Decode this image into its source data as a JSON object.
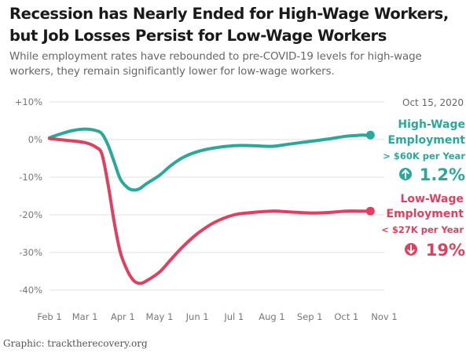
{
  "header": {
    "title_line1": "Recession has Nearly Ended for High-Wage Workers,",
    "title_line2": "but Job Losses Persist for Low-Wage Workers",
    "subtitle_line1": "While employment rates have rebounded to pre-COVID-19 levels for high-wage",
    "subtitle_line2": "workers, they remain significantly lower for low-wage workers."
  },
  "date_label": "Oct 15, 2020",
  "credit": "Graphic: tracktherecovery.org",
  "colors": {
    "high": "#2aa89a",
    "low": "#e0405f",
    "grid": "#e0e0e0",
    "axis_text": "#777777"
  },
  "annotations": {
    "high": {
      "line1": "High-Wage",
      "line2": "Employment",
      "line3": "> $60K per Year",
      "change": "1.2%",
      "icon": "arrow-up-circle-icon"
    },
    "low": {
      "line1": "Low-Wage",
      "line2": "Employment",
      "line3": "< $27K per Year",
      "change": "19%",
      "icon": "arrow-down-circle-icon"
    }
  },
  "chart_data": {
    "type": "line",
    "x_tick_labels": [
      "Feb 1",
      "Mar 1",
      "Apr 1",
      "May 1",
      "Jun 1",
      "Jul 1",
      "Aug 1",
      "Sep 1",
      "Oct 1",
      "Nov 1"
    ],
    "y_ticks": [
      10,
      0,
      -10,
      -20,
      -30,
      -40
    ],
    "y_tick_labels": [
      "+10%",
      "0%",
      "-10%",
      "-20%",
      "-30%",
      "-40%"
    ],
    "ylim": [
      -42,
      10
    ],
    "xlim": [
      "2020-02-01",
      "2020-11-01"
    ],
    "grid": "horizontal",
    "series": [
      {
        "name": "High-Wage Employment",
        "color": "#2aa89a",
        "points": [
          [
            "2020-02-01",
            0.5
          ],
          [
            "2020-02-10",
            1.5
          ],
          [
            "2020-02-20",
            2.4
          ],
          [
            "2020-03-01",
            2.8
          ],
          [
            "2020-03-10",
            2.4
          ],
          [
            "2020-03-15",
            1.5
          ],
          [
            "2020-03-20",
            -1.5
          ],
          [
            "2020-03-25",
            -6
          ],
          [
            "2020-03-30",
            -10.5
          ],
          [
            "2020-04-05",
            -12.8
          ],
          [
            "2020-04-10",
            -13.4
          ],
          [
            "2020-04-15",
            -13.0
          ],
          [
            "2020-04-20",
            -11.8
          ],
          [
            "2020-05-01",
            -9.5
          ],
          [
            "2020-05-10",
            -7.0
          ],
          [
            "2020-05-20",
            -4.8
          ],
          [
            "2020-06-01",
            -3.2
          ],
          [
            "2020-06-15",
            -2.2
          ],
          [
            "2020-07-01",
            -1.6
          ],
          [
            "2020-07-15",
            -1.6
          ],
          [
            "2020-08-01",
            -1.8
          ],
          [
            "2020-08-15",
            -1.2
          ],
          [
            "2020-09-01",
            -0.5
          ],
          [
            "2020-09-15",
            0.1
          ],
          [
            "2020-10-01",
            0.9
          ],
          [
            "2020-10-10",
            1.1
          ],
          [
            "2020-10-15",
            1.2
          ],
          [
            "2020-10-20",
            1.0
          ]
        ],
        "end_value": 1.2
      },
      {
        "name": "Low-Wage Employment",
        "color": "#e0405f",
        "points": [
          [
            "2020-02-01",
            0.3
          ],
          [
            "2020-02-15",
            -0.2
          ],
          [
            "2020-03-01",
            -0.8
          ],
          [
            "2020-03-10",
            -2.0
          ],
          [
            "2020-03-15",
            -4.0
          ],
          [
            "2020-03-20",
            -12.0
          ],
          [
            "2020-03-25",
            -22.0
          ],
          [
            "2020-03-30",
            -30.0
          ],
          [
            "2020-04-05",
            -35.0
          ],
          [
            "2020-04-10",
            -37.5
          ],
          [
            "2020-04-15",
            -38.2
          ],
          [
            "2020-04-20",
            -37.6
          ],
          [
            "2020-05-01",
            -35.2
          ],
          [
            "2020-05-10",
            -32.0
          ],
          [
            "2020-05-20",
            -28.5
          ],
          [
            "2020-06-01",
            -25.0
          ],
          [
            "2020-06-15",
            -22.0
          ],
          [
            "2020-07-01",
            -20.0
          ],
          [
            "2020-07-15",
            -19.4
          ],
          [
            "2020-08-01",
            -19.0
          ],
          [
            "2020-08-15",
            -19.2
          ],
          [
            "2020-09-01",
            -19.5
          ],
          [
            "2020-09-15",
            -19.4
          ],
          [
            "2020-10-01",
            -19.0
          ],
          [
            "2020-10-10",
            -19.0
          ],
          [
            "2020-10-15",
            -19.0
          ],
          [
            "2020-10-20",
            -19.0
          ]
        ],
        "end_value": -19.0
      }
    ]
  }
}
